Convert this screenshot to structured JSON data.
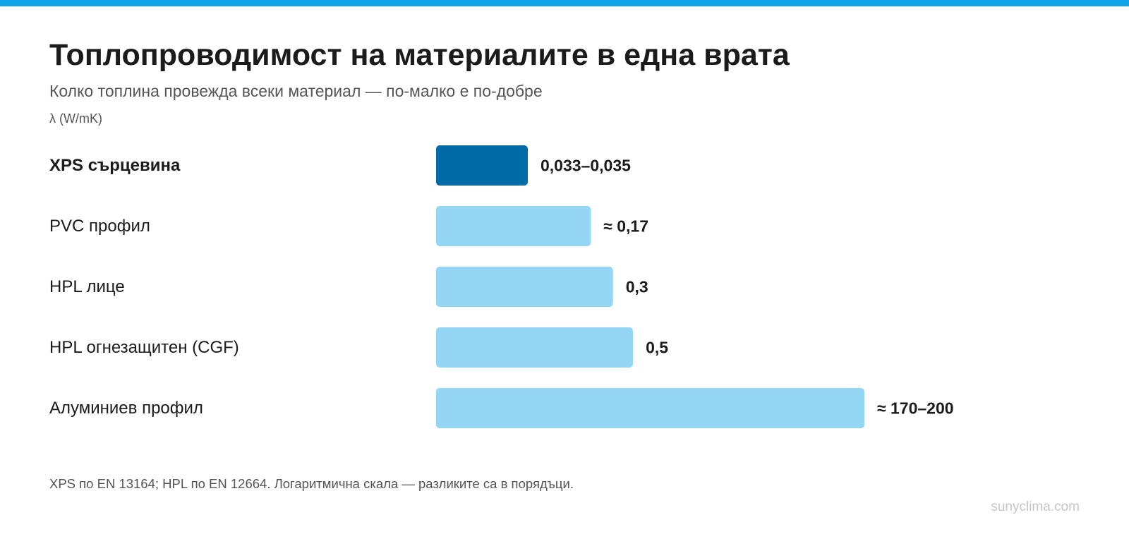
{
  "header": {
    "title": "Топлопроводимост на материалите в една врата",
    "subtitle": "Колко топлина провежда всеки материал — по-малко е по-добре",
    "unit_label": "λ (W/mK)"
  },
  "chart_data": {
    "type": "bar",
    "orientation": "horizontal",
    "scale": "log",
    "title": "Топлопроводимост на материалите в една врата",
    "subtitle": "Колко топлина провежда всеки материал — по-малко е по-добре",
    "xlabel": "λ (W/mK)",
    "ylabel": "",
    "categories": [
      "XPS сърцевина",
      "PVC профил",
      "HPL лице",
      "HPL огнезащитен (CGF)",
      "Алуминиев профил"
    ],
    "values": [
      0.034,
      0.17,
      0.3,
      0.5,
      185
    ],
    "value_labels": [
      "0,033–0,035",
      "≈ 0,17",
      "0,3",
      "0,5",
      "≈ 170–200"
    ],
    "highlight_index": 0,
    "grid": false,
    "legend": "none",
    "colors": {
      "highlight": "#006ba6",
      "default": "#94d6f4",
      "label": "#1b1b1b"
    }
  },
  "footnote": "XPS по EN 13164; HPL по EN 12664. Логаритмична скала — разликите са в порядъци.",
  "source": "sunyclima.com",
  "colors": {
    "accent_stripe": "#12a4e8",
    "title": "#1b1b1b",
    "muted_text": "#555555",
    "source_text": "#c6c6c6"
  }
}
